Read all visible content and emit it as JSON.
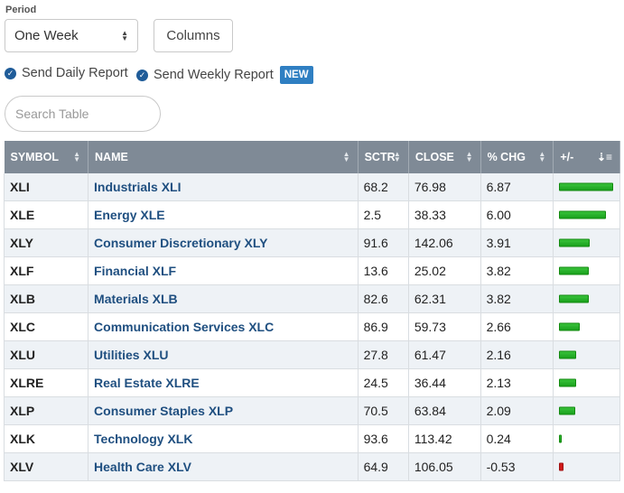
{
  "controls": {
    "period_label": "Period",
    "period_value": "One Week",
    "columns_label": "Columns",
    "daily_report": "Send Daily Report",
    "weekly_report": "Send Weekly Report",
    "new_badge": "NEW",
    "search_placeholder": "Search Table"
  },
  "table": {
    "headers": [
      "SYMBOL",
      "NAME",
      "SCTR",
      "CLOSE",
      "% CHG",
      "+/-"
    ],
    "rows": [
      {
        "symbol": "XLI",
        "name": "Industrials XLI",
        "sctr": "68.2",
        "close": "76.98",
        "chg": "6.87",
        "pct": 6.87
      },
      {
        "symbol": "XLE",
        "name": "Energy XLE",
        "sctr": "2.5",
        "close": "38.33",
        "chg": "6.00",
        "pct": 6.0
      },
      {
        "symbol": "XLY",
        "name": "Consumer Discretionary XLY",
        "sctr": "91.6",
        "close": "142.06",
        "chg": "3.91",
        "pct": 3.91
      },
      {
        "symbol": "XLF",
        "name": "Financial XLF",
        "sctr": "13.6",
        "close": "25.02",
        "chg": "3.82",
        "pct": 3.82
      },
      {
        "symbol": "XLB",
        "name": "Materials XLB",
        "sctr": "82.6",
        "close": "62.31",
        "chg": "3.82",
        "pct": 3.82
      },
      {
        "symbol": "XLC",
        "name": "Communication Services XLC",
        "sctr": "86.9",
        "close": "59.73",
        "chg": "2.66",
        "pct": 2.66
      },
      {
        "symbol": "XLU",
        "name": "Utilities XLU",
        "sctr": "27.8",
        "close": "61.47",
        "chg": "2.16",
        "pct": 2.16
      },
      {
        "symbol": "XLRE",
        "name": "Real Estate XLRE",
        "sctr": "24.5",
        "close": "36.44",
        "chg": "2.13",
        "pct": 2.13
      },
      {
        "symbol": "XLP",
        "name": "Consumer Staples XLP",
        "sctr": "70.5",
        "close": "63.84",
        "chg": "2.09",
        "pct": 2.09
      },
      {
        "symbol": "XLK",
        "name": "Technology XLK",
        "sctr": "93.6",
        "close": "113.42",
        "chg": "0.24",
        "pct": 0.24
      },
      {
        "symbol": "XLV",
        "name": "Health Care XLV",
        "sctr": "64.9",
        "close": "106.05",
        "chg": "-0.53",
        "pct": -0.53
      }
    ]
  },
  "colors": {
    "header_bg": "#7f8a96",
    "positive_bar": "#1aa11d",
    "negative_bar": "#d11a1a",
    "link": "#1f4f80",
    "badge": "#2f7fc2"
  }
}
